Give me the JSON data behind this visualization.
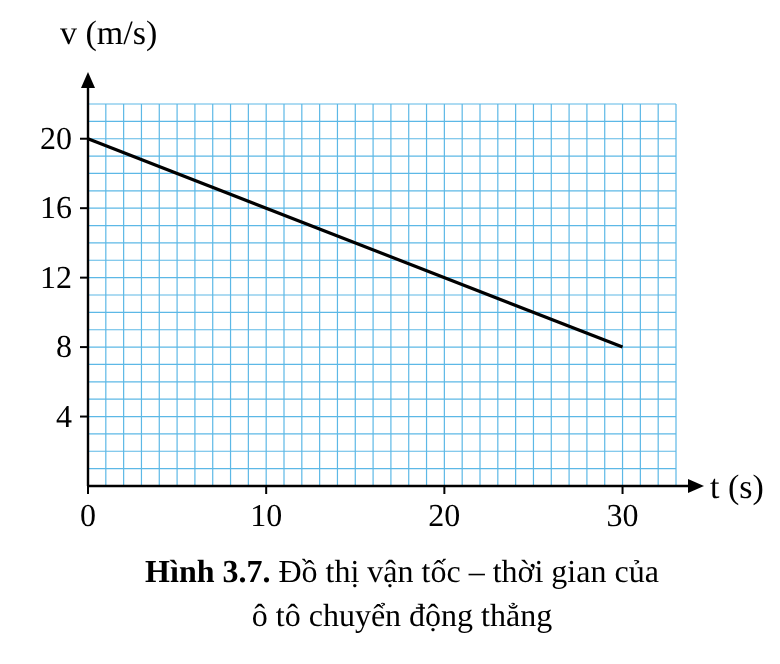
{
  "chart_data": {
    "type": "line",
    "title": "Hình 3.7. Đồ thị vận tốc – thời gian của ô tô chuyển động thẳng",
    "xlabel": "t (s)",
    "ylabel": "v (m/s)",
    "x": [
      0,
      30
    ],
    "series": [
      {
        "color": "#000000",
        "values": [
          20,
          8
        ]
      }
    ],
    "xlim": [
      0,
      33
    ],
    "ylim": [
      0,
      22
    ],
    "xticks": [
      0,
      10,
      20,
      30
    ],
    "yticks": [
      4,
      8,
      12,
      16,
      20
    ],
    "grid": true,
    "marker": "none",
    "line_style": "solid"
  }
}
